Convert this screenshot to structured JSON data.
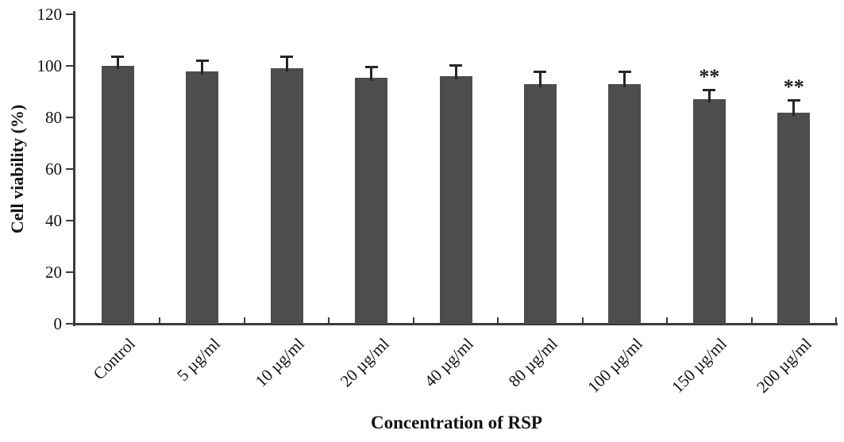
{
  "chart_data": {
    "type": "bar",
    "title": "",
    "xlabel": "Concentration of RSP",
    "ylabel": "Cell viability (%)",
    "categories": [
      "Control",
      "5 µg/ml",
      "10 µg/ml",
      "20 µg/ml",
      "40 µg/ml",
      "80 µg/ml",
      "100 µg/ml",
      "150 µg/ml",
      "200 µg/ml"
    ],
    "values": [
      100,
      98,
      99,
      95.5,
      96,
      93,
      93,
      87,
      82
    ],
    "errors_upper": [
      3.5,
      4,
      4.5,
      4,
      4,
      4.5,
      4.5,
      3.5,
      4.5
    ],
    "significance": [
      "",
      "",
      "",
      "",
      "",
      "",
      "",
      "**",
      "**"
    ],
    "ylim": [
      0,
      120
    ],
    "ytick_step": 20,
    "grid": false,
    "legend": null,
    "bar_color": "#4d4d4d",
    "axis_color": "#3a3a3a",
    "error_bar_color": "#262626",
    "text_color": "#111111"
  }
}
